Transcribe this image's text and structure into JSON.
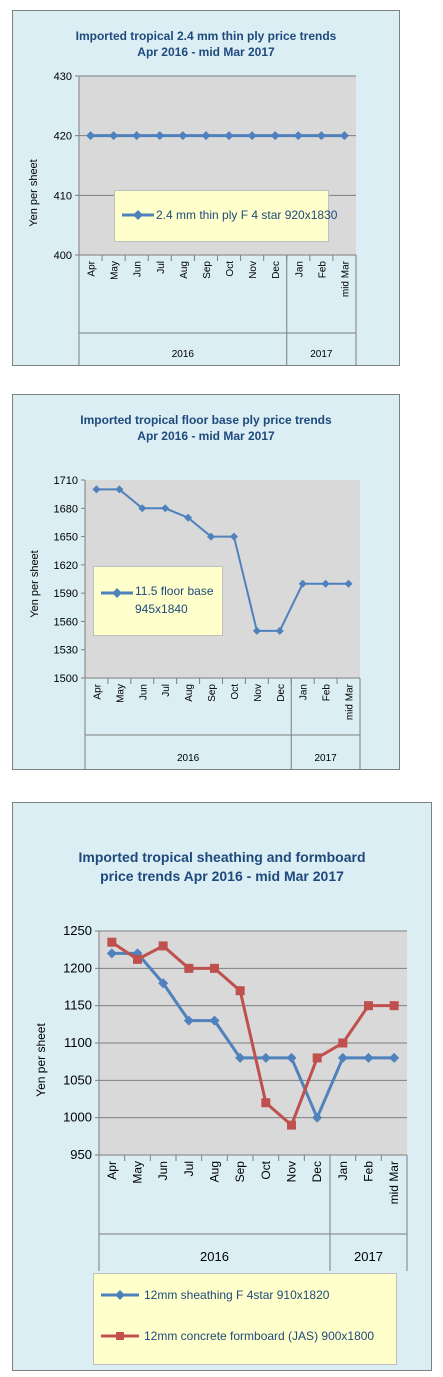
{
  "charts": [
    {
      "title_line1": "Imported tropical 2.4 mm thin ply price trends",
      "title_line2": "Apr 2016 - mid Mar 2017",
      "ylabel": "Yen per sheet"
    },
    {
      "title_line1": "Imported tropical floor base ply price trends",
      "title_line2": "Apr 2016 - mid Mar 2017",
      "ylabel": "Yen per sheet"
    },
    {
      "title_line1": "Imported tropical sheathing and formboard",
      "title_line2": "price trends Apr 2016 - mid Mar 2017",
      "ylabel": "Yen per sheet"
    }
  ],
  "colors": {
    "panel_bg": "#daeef3",
    "plot_bg": "#d9d9d9",
    "blue_series": "#4f81bd",
    "red_series": "#c0504d",
    "legend_bg": "#ffffcc",
    "title": "#1f497d"
  },
  "chart_data": [
    {
      "type": "line",
      "categories": [
        "Apr",
        "May",
        "Jun",
        "Jul",
        "Aug",
        "Sep",
        "Oct",
        "Nov",
        "Dec",
        "Jan",
        "Feb",
        "mid Mar"
      ],
      "year_groups": [
        {
          "label": "2016",
          "span": 9
        },
        {
          "label": "2017",
          "span": 3
        }
      ],
      "series": [
        {
          "name": "2.4 mm thin ply F 4 star 920x1830",
          "values": [
            420,
            420,
            420,
            420,
            420,
            420,
            420,
            420,
            420,
            420,
            420,
            420
          ],
          "color": "#4f81bd",
          "marker": "diamond"
        }
      ],
      "ylim": [
        400,
        430
      ],
      "yticks": [
        400,
        410,
        420,
        430
      ],
      "ylabel": "Yen per sheet",
      "legend": "center",
      "grid": true
    },
    {
      "type": "line",
      "categories": [
        "Apr",
        "May",
        "Jun",
        "Jul",
        "Aug",
        "Sep",
        "Oct",
        "Nov",
        "Dec",
        "Jan",
        "Feb",
        "mid Mar"
      ],
      "year_groups": [
        {
          "label": "2016",
          "span": 9
        },
        {
          "label": "2017",
          "span": 3
        }
      ],
      "series": [
        {
          "name": "11.5 floor base 945x1840",
          "name_line1": "11.5 floor base",
          "name_line2": "945x1840",
          "values": [
            1700,
            1700,
            1680,
            1680,
            1670,
            1650,
            1650,
            1550,
            1550,
            1600,
            1600,
            1600
          ],
          "color": "#4f81bd",
          "marker": "diamond"
        }
      ],
      "ylim": [
        1500,
        1710
      ],
      "yticks": [
        1500,
        1530,
        1560,
        1590,
        1620,
        1650,
        1680,
        1710
      ],
      "ylabel": "Yen per sheet",
      "legend": "center-left",
      "grid": false
    },
    {
      "type": "line",
      "categories": [
        "Apr",
        "May",
        "Jun",
        "Jul",
        "Aug",
        "Sep",
        "Oct",
        "Nov",
        "Dec",
        "Jan",
        "Feb",
        "mid Mar"
      ],
      "year_groups": [
        {
          "label": "2016",
          "span": 9
        },
        {
          "label": "2017",
          "span": 3
        }
      ],
      "series": [
        {
          "name": "12mm sheathing F 4star 910x1820",
          "values": [
            1220,
            1220,
            1180,
            1130,
            1130,
            1080,
            1080,
            1080,
            1000,
            1080,
            1080,
            1080
          ],
          "color": "#4f81bd",
          "marker": "diamond"
        },
        {
          "name": "12mm concrete formboard (JAS) 900x1800",
          "values": [
            1235,
            1212,
            1230,
            1200,
            1200,
            1170,
            1020,
            990,
            1080,
            1100,
            1150,
            1150
          ],
          "color": "#c0504d",
          "marker": "square"
        }
      ],
      "ylim": [
        950,
        1250
      ],
      "yticks": [
        950,
        1000,
        1050,
        1100,
        1150,
        1200,
        1250
      ],
      "ylabel": "Yen per sheet",
      "legend": "bottom",
      "grid": true
    }
  ]
}
